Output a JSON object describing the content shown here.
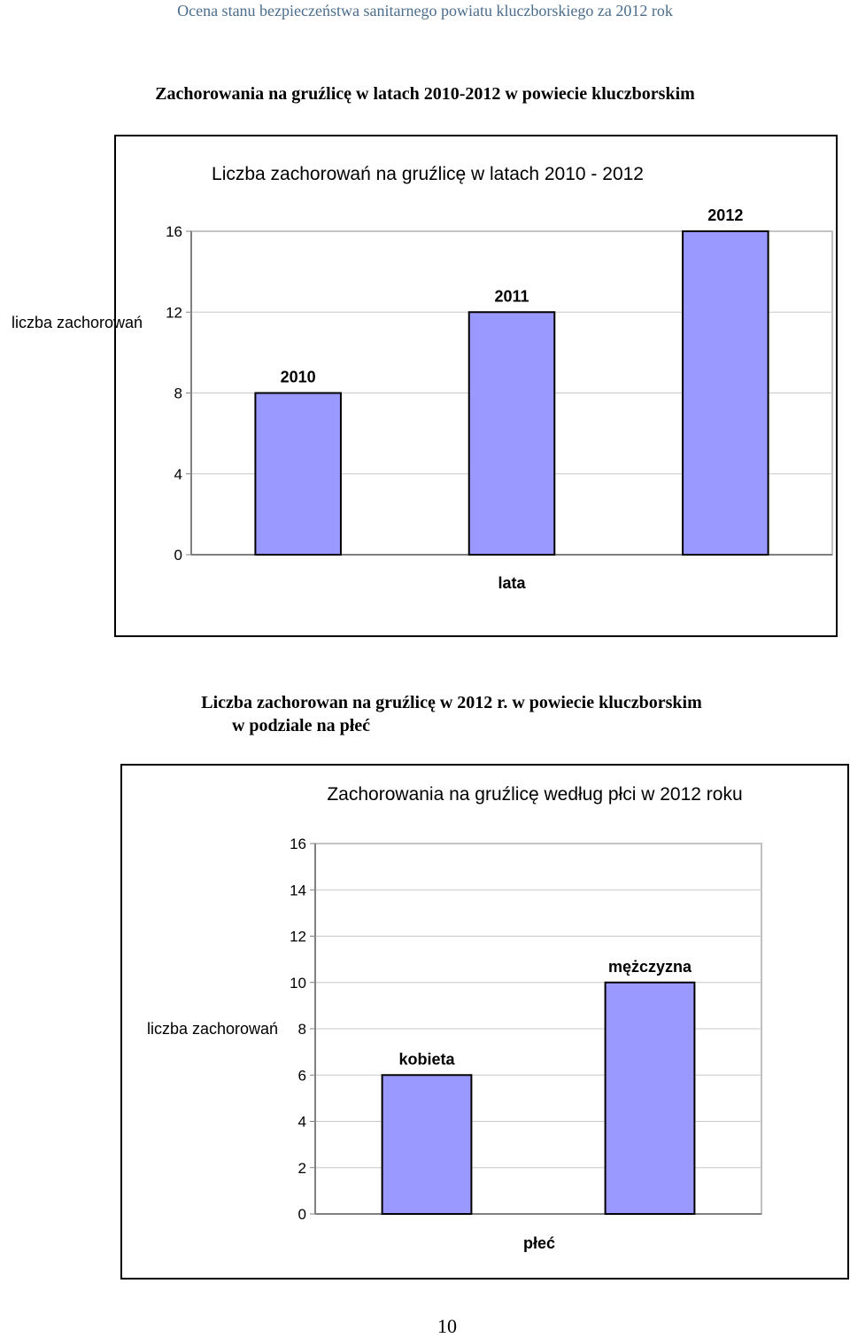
{
  "header": {
    "text": "Ocena stanu bezpieczeństwa sanitarnego powiatu kluczborskiego za 2012 rok"
  },
  "section1": {
    "title": "Zachorowania na gruźlicę w latach 2010-2012 w powiecie kluczborskim"
  },
  "section2": {
    "title_line1": "Liczba zachorowan na gruźlicę w 2012 r. w powiecie kluczborskim",
    "title_line2": "w podziale na płeć"
  },
  "page_number": "10",
  "chart_data": [
    {
      "type": "bar",
      "title": "Liczba zachorowań na gruźlicę w latach 2010 - 2012",
      "xlabel": "lata",
      "ylabel": "liczba zachorowań",
      "categories": [
        "2010",
        "2011",
        "2012"
      ],
      "values": [
        8,
        12,
        16
      ],
      "ylim": [
        0,
        16
      ],
      "yticks": [
        0,
        4,
        8,
        12,
        16
      ],
      "bar_color": "#9999ff",
      "data_labels": [
        "2010",
        "2011",
        "2012"
      ]
    },
    {
      "type": "bar",
      "title": "Zachorowania na gruźlicę według płci w 2012 roku",
      "xlabel": "płeć",
      "ylabel": "liczba zachorowań",
      "categories": [
        "kobieta",
        "mężczyzna"
      ],
      "values": [
        6,
        10
      ],
      "ylim": [
        0,
        16
      ],
      "yticks": [
        0,
        2,
        4,
        6,
        8,
        10,
        12,
        14,
        16
      ],
      "bar_color": "#9999ff",
      "data_labels": [
        "kobieta",
        "mężczyzna"
      ]
    }
  ]
}
